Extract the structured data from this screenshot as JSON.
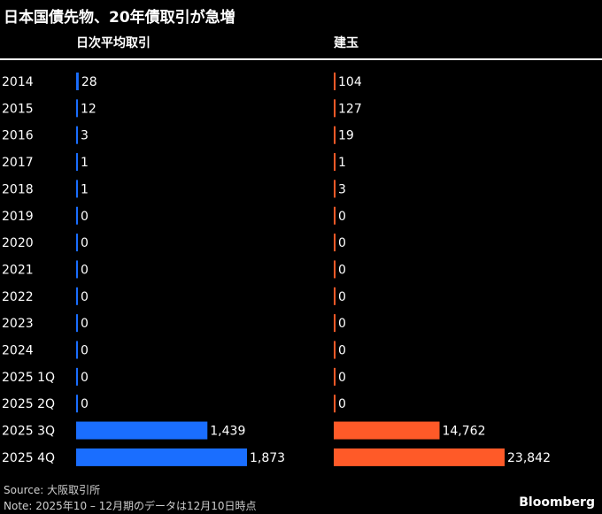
{
  "header": {
    "title": "日本国債先物、20年債取引が急増",
    "left_panel_title": "日次平均取引",
    "right_panel_title": "建玉"
  },
  "footer": {
    "source": "Source: 大阪取引所",
    "note": "Note: 2025年10 – 12月期のデータは12月10日時点",
    "brand": "Bloomberg"
  },
  "chart_data": [
    {
      "type": "bar",
      "orientation": "horizontal",
      "title": "日次平均取引",
      "categories": [
        "2014",
        "2015",
        "2016",
        "2017",
        "2018",
        "2019",
        "2020",
        "2021",
        "2022",
        "2023",
        "2024",
        "2025 1Q",
        "2025 2Q",
        "2025 3Q",
        "2025 4Q"
      ],
      "values": [
        28,
        12,
        3,
        1,
        1,
        0,
        0,
        0,
        0,
        0,
        0,
        0,
        0,
        1439,
        1873
      ],
      "labels": [
        "28",
        "12",
        "3",
        "1",
        "1",
        "0",
        "0",
        "0",
        "0",
        "0",
        "0",
        "0",
        "0",
        "1,439",
        "1,873"
      ],
      "color": "#1a6eff",
      "xlim": [
        0,
        1873
      ]
    },
    {
      "type": "bar",
      "orientation": "horizontal",
      "title": "建玉",
      "categories": [
        "2014",
        "2015",
        "2016",
        "2017",
        "2018",
        "2019",
        "2020",
        "2021",
        "2022",
        "2023",
        "2024",
        "2025 1Q",
        "2025 2Q",
        "2025 3Q",
        "2025 4Q"
      ],
      "values": [
        104,
        127,
        19,
        1,
        3,
        0,
        0,
        0,
        0,
        0,
        0,
        0,
        0,
        14762,
        23842
      ],
      "labels": [
        "104",
        "127",
        "19",
        "1",
        "3",
        "0",
        "0",
        "0",
        "0",
        "0",
        "0",
        "0",
        "0",
        "14,762",
        "23,842"
      ],
      "color": "#ff5a28",
      "xlim": [
        0,
        23842
      ]
    }
  ]
}
